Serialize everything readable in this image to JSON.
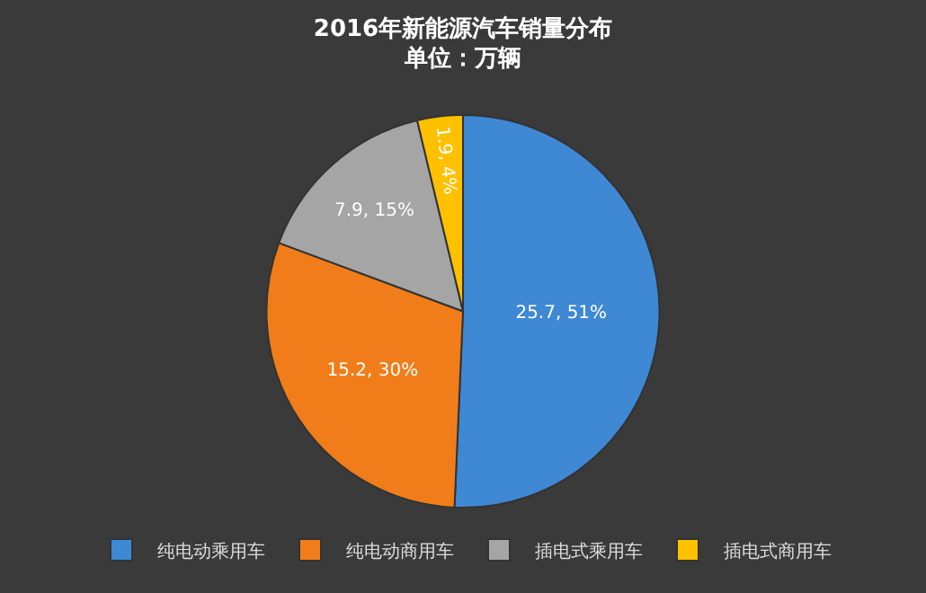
{
  "chart_data": {
    "type": "pie",
    "title": "2016年新能源汽车销量分布",
    "subtitle": "单位：万辆",
    "categories": [
      "纯电动乘用车",
      "纯电动商用车",
      "插电式乘用车",
      "插电式商用车"
    ],
    "values": [
      25.7,
      15.2,
      7.9,
      1.9
    ],
    "value_labels": [
      "25.7, 51%",
      "15.2, 30%",
      "7.9, 15%",
      "1.9, 4%"
    ],
    "colors": [
      "#3f88d4",
      "#f07d1a",
      "#a5a5a5",
      "#ffc000"
    ],
    "legend": "bottom"
  }
}
